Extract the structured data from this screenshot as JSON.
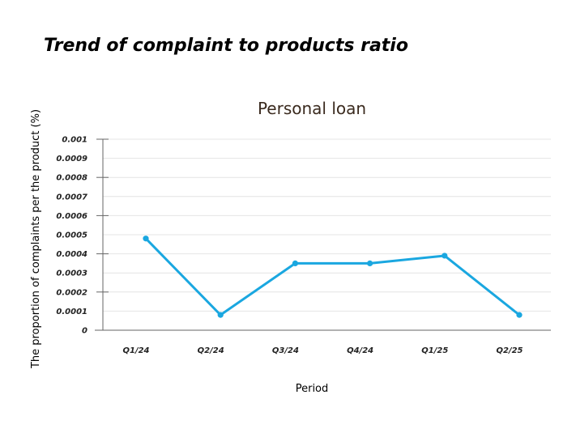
{
  "heading": "Trend of complaint to products ratio",
  "chart_data": {
    "type": "line",
    "title": "Personal loan",
    "xlabel": "Period",
    "ylabel": "The proportion of complaints per the product (%)",
    "categories": [
      "Q1/24",
      "Q2/24",
      "Q3/24",
      "Q4/24",
      "Q1/25",
      "Q2/25"
    ],
    "series": [
      {
        "values": [
          0.00048,
          8e-05,
          0.00035,
          0.00035,
          0.00039,
          8e-05
        ]
      }
    ],
    "ylim": [
      0,
      0.001
    ],
    "yticks": [
      "0",
      "0.0001",
      "0.0002",
      "0.0003",
      "0.0004",
      "0.0005",
      "0.0006",
      "0.0007",
      "0.0008",
      "0.0009",
      "0.001"
    ],
    "grid": true,
    "line_color": "#1aa7e0"
  }
}
